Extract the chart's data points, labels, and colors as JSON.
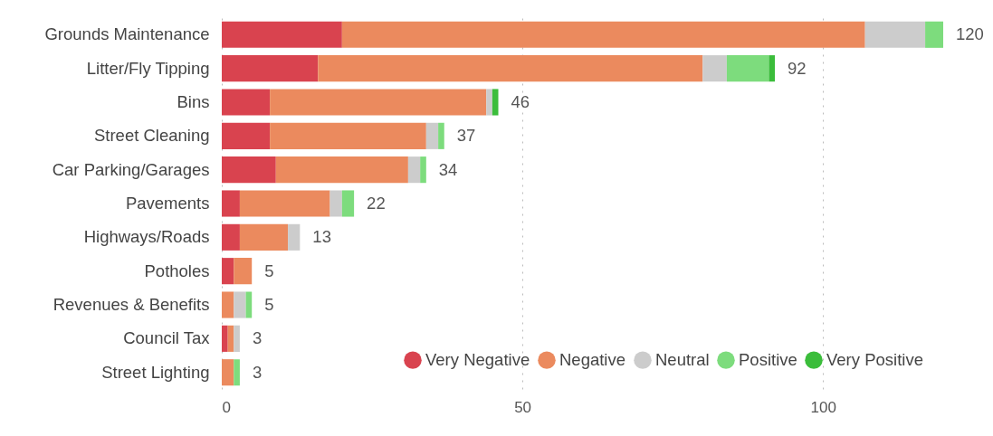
{
  "chart_data": {
    "type": "bar",
    "orientation": "horizontal",
    "stacked": true,
    "categories": [
      "Grounds Maintenance",
      "Litter/Fly Tipping",
      "Bins",
      "Street Cleaning",
      "Car Parking/Garages",
      "Pavements",
      "Highways/Roads",
      "Potholes",
      "Revenues & Benefits",
      "Council Tax",
      "Street Lighting"
    ],
    "series": [
      {
        "name": "Very Negative",
        "color": "#d9434f",
        "values": [
          20,
          16,
          8,
          8,
          9,
          3,
          3,
          2,
          null,
          1,
          null
        ]
      },
      {
        "name": "Negative",
        "color": "#eb8a5e",
        "values": [
          87,
          64,
          36,
          26,
          22,
          15,
          8,
          3,
          2,
          1,
          2
        ]
      },
      {
        "name": "Neutral",
        "color": "#cccccc",
        "values": [
          10,
          4,
          1,
          2,
          2,
          2,
          2,
          null,
          2,
          1,
          null
        ]
      },
      {
        "name": "Positive",
        "color": "#7ddc7d",
        "values": [
          3,
          7,
          null,
          1,
          1,
          2,
          null,
          null,
          1,
          null,
          1
        ]
      },
      {
        "name": "Very Positive",
        "color": "#3bbd3b",
        "values": [
          null,
          1,
          1,
          null,
          null,
          null,
          null,
          null,
          null,
          null,
          null
        ]
      }
    ],
    "totals": [
      "120",
      "92",
      "46",
      "37",
      "34",
      "22",
      "13",
      "5",
      "5",
      "3",
      "3"
    ],
    "xlim": [
      0,
      120
    ],
    "xticks": [
      0,
      50,
      100
    ],
    "grid": "x",
    "legend": "bottom right"
  }
}
